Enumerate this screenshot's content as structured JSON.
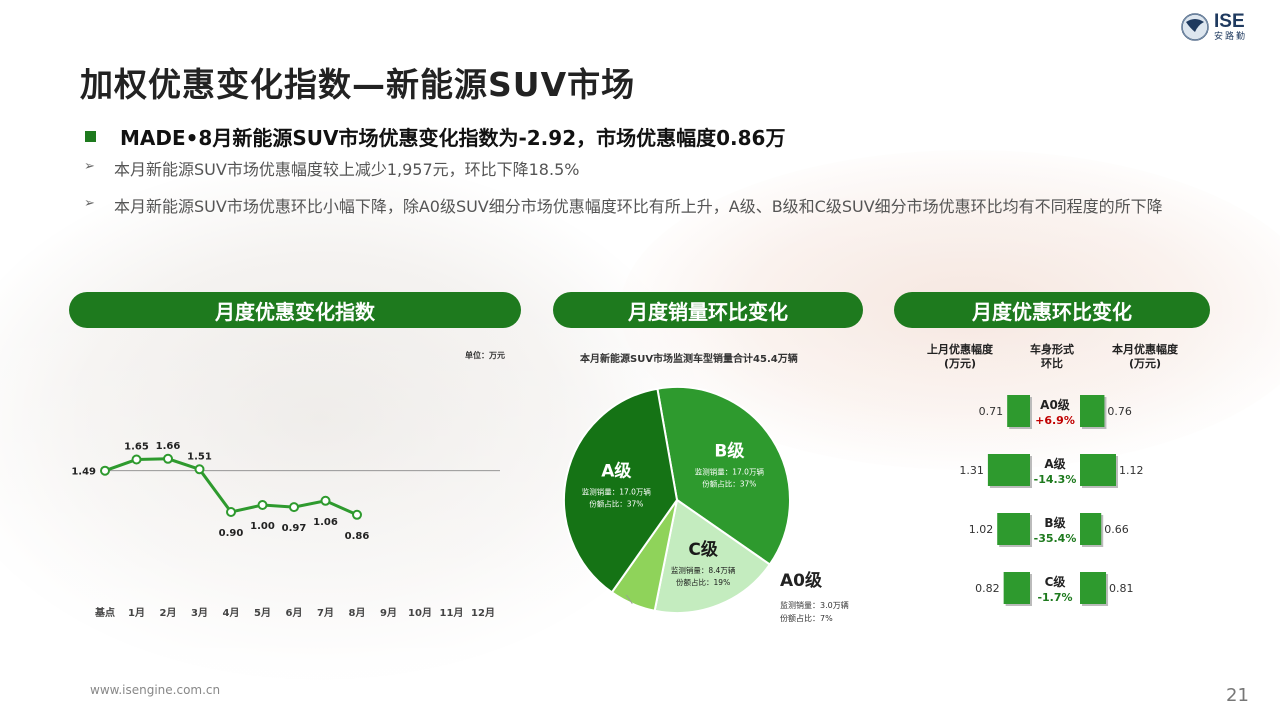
{
  "slide": {
    "title": "加权优惠变化指数—新能源SUV市场",
    "headline": "MADE•8月新能源SUV市场优惠变化指数为-2.92，市场优惠幅度0.86万",
    "bullets": [
      "本月新能源SUV市场优惠幅度较上减少1,957元，环比下降18.5%",
      "本月新能源SUV市场优惠环比小幅下降，除A0级SUV细分市场优惠幅度环比有所上升，A级、B级和C级SUV细分市场优惠环比均有不同程度的所下降"
    ],
    "logo_text": "ISE",
    "logo_sub": "安路勤",
    "footer": "www.isengine.com.cn",
    "page_number": "21",
    "colors": {
      "green": "#1e7a1e",
      "accent_green": "#2e9a2e",
      "red": "#c00000"
    }
  },
  "panel1": {
    "title": "月度优惠变化指数",
    "unit": "单位：万元"
  },
  "panel2": {
    "title": "月度销量环比变化",
    "subtitle": "本月新能源SUV市场监测车型销量合计45.4万辆"
  },
  "panel3": {
    "title": "月度优惠环比变化",
    "col_left": "上月优惠幅度\n(万元)",
    "col_mid": "车身形式\n环比",
    "col_right": "本月优惠幅度\n(万元)"
  },
  "chart_data": [
    {
      "type": "line",
      "categories": [
        "基点",
        "1月",
        "2月",
        "3月",
        "4月",
        "5月",
        "6月",
        "7月",
        "8月",
        "9月",
        "10月",
        "11月",
        "12月"
      ],
      "values": [
        1.49,
        1.65,
        1.66,
        1.51,
        0.9,
        1.0,
        0.97,
        1.06,
        0.86,
        null,
        null,
        null,
        null
      ],
      "labels": [
        "1.49",
        "1.65",
        "1.66",
        "1.51",
        "0.90",
        "1.00",
        "0.97",
        "1.06",
        "0.86"
      ],
      "reference_line": 1.49,
      "ylim": [
        0,
        2.2
      ]
    },
    {
      "type": "pie",
      "slices": [
        {
          "name": "B级",
          "value": 17.0,
          "detail1": "监测销量：17.0万辆",
          "detail2": "份额占比：37%",
          "color": "#2e9a2e"
        },
        {
          "name": "C级",
          "value": 8.4,
          "detail1": "监测销量：8.4万辆",
          "detail2": "份额占比：19%",
          "color": "#c4ecbf"
        },
        {
          "name": "A0级",
          "value": 3.0,
          "detail1": "监测销量：3.0万辆",
          "detail2": "份额占比：7%",
          "color": "#8fd35a"
        },
        {
          "name": "A级",
          "value": 17.0,
          "detail1": "监测销量：17.0万辆",
          "detail2": "份额占比：37%",
          "color": "#157315"
        }
      ]
    },
    {
      "type": "bar",
      "rows": [
        {
          "segment": "A0级",
          "change": "+6.9%",
          "prev": 0.71,
          "prev_label": "0.71",
          "curr": 0.76,
          "curr_label": "0.76",
          "positive": true
        },
        {
          "segment": "A级",
          "change": "-14.3%",
          "prev": 1.31,
          "prev_label": "1.31",
          "curr": 1.12,
          "curr_label": "1.12",
          "positive": false
        },
        {
          "segment": "B级",
          "change": "-35.4%",
          "prev": 1.02,
          "prev_label": "1.02",
          "curr": 0.66,
          "curr_label": "0.66",
          "positive": false
        },
        {
          "segment": "C级",
          "change": "-1.7%",
          "prev": 0.82,
          "prev_label": "0.82",
          "curr": 0.81,
          "curr_label": "0.81",
          "positive": false
        }
      ]
    }
  ]
}
